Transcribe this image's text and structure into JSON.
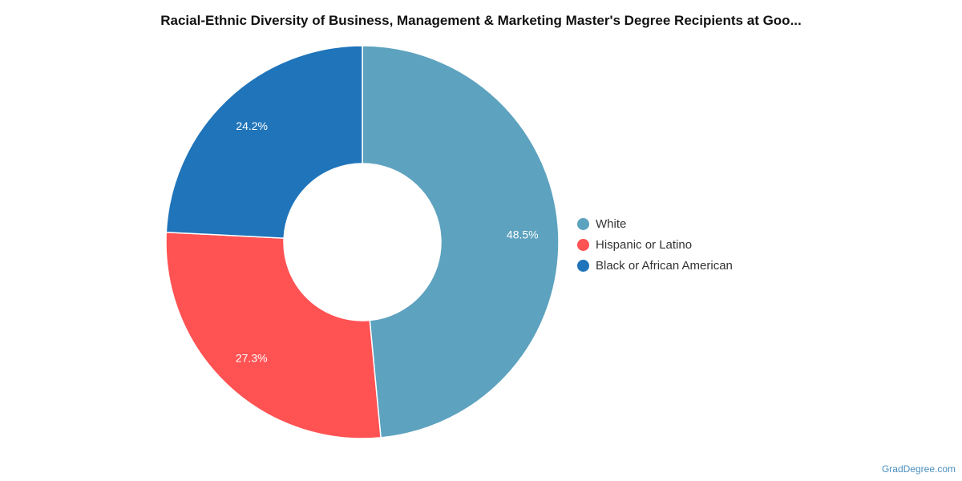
{
  "chart_data": {
    "type": "pie",
    "donut": true,
    "title": "Racial-Ethnic Diversity of Business, Management & Marketing Master's Degree Recipients at Goo...",
    "categories": [
      "White",
      "Hispanic or Latino",
      "Black or African American"
    ],
    "values": [
      48.5,
      27.3,
      24.2
    ],
    "value_labels": [
      "48.5%",
      "27.3%",
      "24.2%"
    ],
    "colors": [
      "#5da2bf",
      "#ff5253",
      "#1f74ba"
    ],
    "legend": "right"
  },
  "watermark": "GradDegree.com"
}
